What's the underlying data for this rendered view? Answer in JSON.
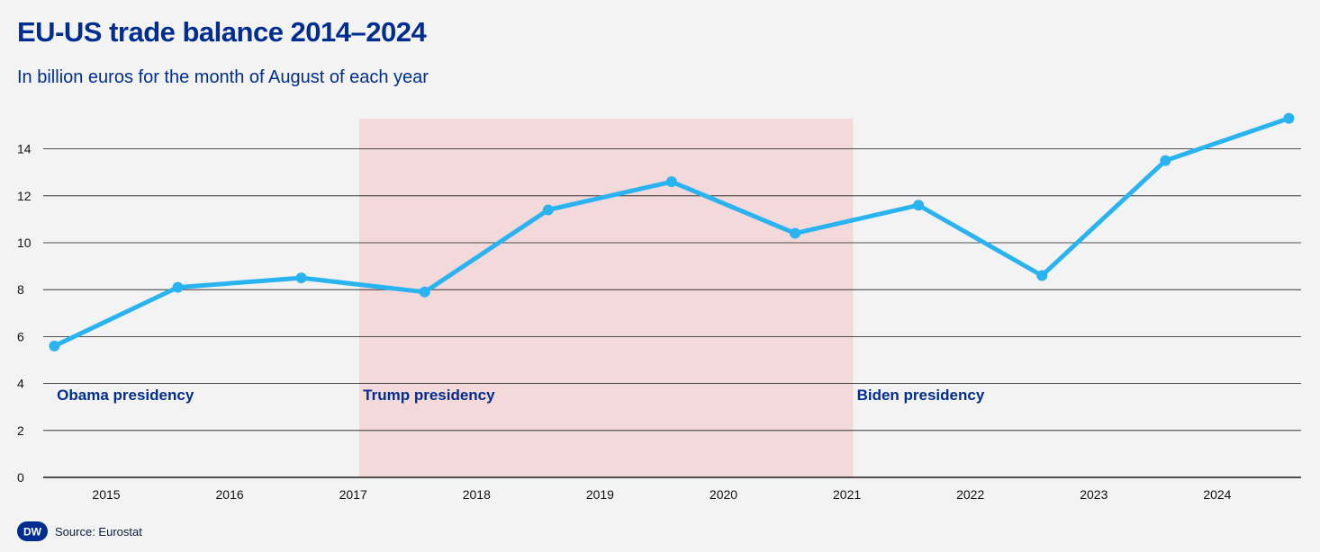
{
  "header": {
    "title": "EU-US trade balance 2014–2024",
    "subtitle": "In billion euros for the month of August of each year"
  },
  "footer": {
    "logo_text": "DW",
    "source": "Source: Eurostat"
  },
  "colors": {
    "title": "#002d8f",
    "line": "#2ab3f1",
    "shade": "#f3d9da",
    "period_label": "#002d8f"
  },
  "chart_data": {
    "type": "line",
    "title": "EU-US trade balance 2014–2024",
    "subtitle": "In billion euros for the month of August of each year",
    "xlabel": "",
    "ylabel": "",
    "xlim": [
      2014.5,
      2024.65
    ],
    "ylim": [
      0,
      15.3
    ],
    "yticks": [
      0,
      2,
      4,
      6,
      8,
      10,
      12,
      14
    ],
    "xticks": [
      2015,
      2016,
      2017,
      2018,
      2019,
      2020,
      2021,
      2022,
      2023,
      2024
    ],
    "xtick_labels": [
      "2015",
      "2016",
      "2017",
      "2018",
      "2019",
      "2020",
      "2021",
      "2022",
      "2023",
      "2024"
    ],
    "grid": "horizontal",
    "series": [
      {
        "x": [
          "2014-08",
          "2015-08",
          "2016-08",
          "2017-08",
          "2018-08",
          "2019-08",
          "2020-08",
          "2021-08",
          "2022-08",
          "2023-08",
          "2024-08"
        ],
        "xnum": [
          2014.58,
          2015.58,
          2016.58,
          2017.58,
          2018.58,
          2019.58,
          2020.58,
          2021.58,
          2022.58,
          2023.58,
          2024.58
        ],
        "values": [
          5.6,
          8.1,
          8.5,
          7.9,
          11.4,
          12.6,
          10.4,
          11.6,
          8.6,
          13.5,
          15.3
        ]
      }
    ],
    "shaded_regions": [
      {
        "label": "Trump presidency",
        "from": "2017-01",
        "to": "2021-01",
        "from_num": 2017.05,
        "to_num": 2021.05
      }
    ],
    "annotations": [
      {
        "text": "Obama presidency",
        "x": 2014.6,
        "y": 3.3
      },
      {
        "text": "Trump presidency",
        "x": 2017.08,
        "y": 3.3
      },
      {
        "text": "Biden presidency",
        "x": 2021.08,
        "y": 3.3
      }
    ]
  }
}
